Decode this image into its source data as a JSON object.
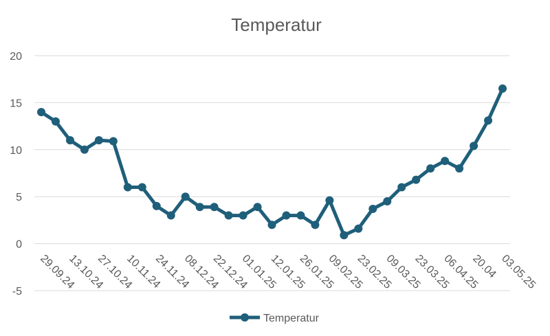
{
  "chart_data": {
    "type": "line",
    "title": "Temperatur",
    "xlabel": "",
    "ylabel": "",
    "ylim": [
      -5,
      20
    ],
    "yticks": [
      -5,
      0,
      5,
      10,
      15,
      20
    ],
    "grid": true,
    "legend_position": "bottom",
    "x_tick_labels": [
      "29.09.24",
      "13.10.24",
      "27.10.24",
      "10.11.24",
      "24.11.24",
      "08.12.24",
      "22.12.24",
      "01.01.25",
      "12.01.25",
      "26.01.25",
      "09.02.25",
      "23.02.25",
      "09.03.25",
      "23.03.25",
      "06.04.25",
      "20.04",
      "03.05.25"
    ],
    "series": [
      {
        "name": "Temperatur",
        "color": "#1f5f7a",
        "values": [
          14,
          13,
          11,
          10,
          11,
          10.9,
          6,
          6,
          4,
          3,
          5,
          3.9,
          3.9,
          3,
          3,
          3.9,
          2,
          3,
          3,
          2,
          4.6,
          0.9,
          1.6,
          3.7,
          4.5,
          6,
          6.8,
          8,
          8.8,
          8,
          10.4,
          13.1,
          16.5
        ]
      }
    ]
  }
}
